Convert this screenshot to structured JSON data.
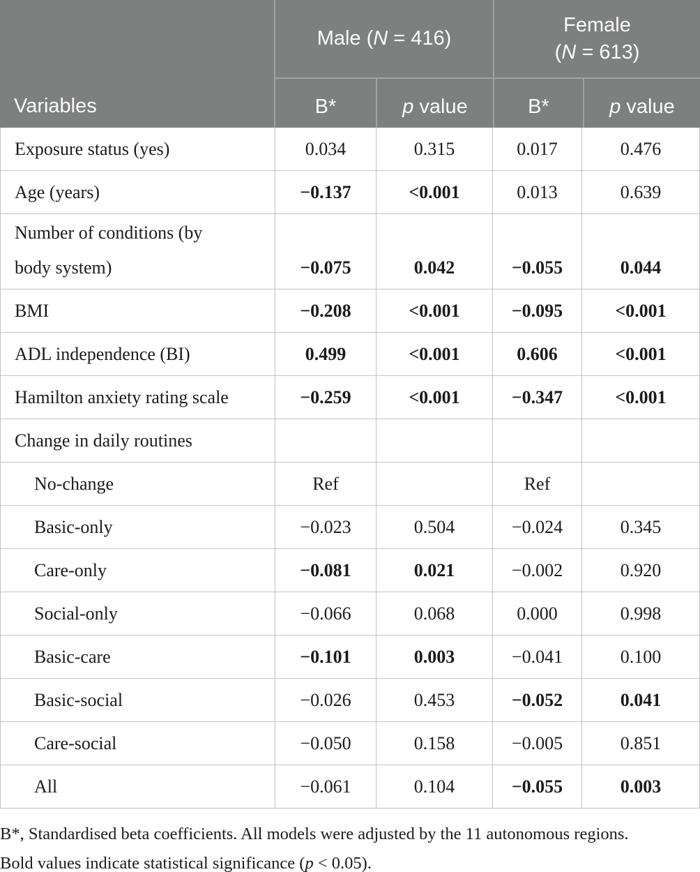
{
  "header": {
    "variables_label": "Variables",
    "male_group": {
      "before": "Male (",
      "n": "N",
      "after": " = 416)"
    },
    "female_group": {
      "line1": "Female",
      "line2_before": "(",
      "n": "N",
      "line2_after": " = 613)"
    },
    "sub_b": "B*",
    "sub_p": "p",
    "sub_p_rest": " value"
  },
  "table": {
    "rows": [
      {
        "label": "Exposure status (yes)",
        "indent": false,
        "cells": [
          {
            "v": "0.034",
            "bold": false
          },
          {
            "v": "0.315",
            "bold": false
          },
          {
            "v": "0.017",
            "bold": false
          },
          {
            "v": "0.476",
            "bold": false
          }
        ]
      },
      {
        "label": "Age (years)",
        "indent": false,
        "cells": [
          {
            "v": "−0.137",
            "bold": true
          },
          {
            "v": "<0.001",
            "bold": true
          },
          {
            "v": "0.013",
            "bold": false
          },
          {
            "v": "0.639",
            "bold": false
          }
        ]
      },
      {
        "label": "Number of conditions (by\nbody system)",
        "indent": false,
        "cells": [
          {
            "v": "−0.075",
            "bold": true
          },
          {
            "v": "0.042",
            "bold": true
          },
          {
            "v": "−0.055",
            "bold": true
          },
          {
            "v": "0.044",
            "bold": true
          }
        ]
      },
      {
        "label": "BMI",
        "indent": false,
        "cells": [
          {
            "v": "−0.208",
            "bold": true
          },
          {
            "v": "<0.001",
            "bold": true
          },
          {
            "v": "−0.095",
            "bold": true
          },
          {
            "v": "<0.001",
            "bold": true
          }
        ]
      },
      {
        "label": "ADL independence (BI)",
        "indent": false,
        "cells": [
          {
            "v": "0.499",
            "bold": true
          },
          {
            "v": "<0.001",
            "bold": true
          },
          {
            "v": "0.606",
            "bold": true
          },
          {
            "v": "<0.001",
            "bold": true
          }
        ]
      },
      {
        "label": "Hamilton anxiety rating scale",
        "indent": false,
        "cells": [
          {
            "v": "−0.259",
            "bold": true
          },
          {
            "v": "<0.001",
            "bold": true
          },
          {
            "v": "−0.347",
            "bold": true
          },
          {
            "v": "<0.001",
            "bold": true
          }
        ]
      },
      {
        "label": "Change in daily routines",
        "indent": false,
        "cells": [
          {
            "v": "",
            "bold": false
          },
          {
            "v": "",
            "bold": false
          },
          {
            "v": "",
            "bold": false
          },
          {
            "v": "",
            "bold": false
          }
        ]
      },
      {
        "label": "No-change",
        "indent": true,
        "cells": [
          {
            "v": "Ref",
            "bold": false
          },
          {
            "v": "",
            "bold": false
          },
          {
            "v": "Ref",
            "bold": false
          },
          {
            "v": "",
            "bold": false
          }
        ]
      },
      {
        "label": "Basic-only",
        "indent": true,
        "cells": [
          {
            "v": "−0.023",
            "bold": false
          },
          {
            "v": "0.504",
            "bold": false
          },
          {
            "v": "−0.024",
            "bold": false
          },
          {
            "v": "0.345",
            "bold": false
          }
        ]
      },
      {
        "label": "Care-only",
        "indent": true,
        "cells": [
          {
            "v": "−0.081",
            "bold": true
          },
          {
            "v": "0.021",
            "bold": true
          },
          {
            "v": "−0.002",
            "bold": false
          },
          {
            "v": "0.920",
            "bold": false
          }
        ]
      },
      {
        "label": "Social-only",
        "indent": true,
        "cells": [
          {
            "v": "−0.066",
            "bold": false
          },
          {
            "v": "0.068",
            "bold": false
          },
          {
            "v": "0.000",
            "bold": false
          },
          {
            "v": "0.998",
            "bold": false
          }
        ]
      },
      {
        "label": "Basic-care",
        "indent": true,
        "cells": [
          {
            "v": "−0.101",
            "bold": true
          },
          {
            "v": "0.003",
            "bold": true
          },
          {
            "v": "−0.041",
            "bold": false
          },
          {
            "v": "0.100",
            "bold": false
          }
        ]
      },
      {
        "label": "Basic-social",
        "indent": true,
        "cells": [
          {
            "v": "−0.026",
            "bold": false
          },
          {
            "v": "0.453",
            "bold": false
          },
          {
            "v": "−0.052",
            "bold": true
          },
          {
            "v": "0.041",
            "bold": true
          }
        ]
      },
      {
        "label": "Care-social",
        "indent": true,
        "cells": [
          {
            "v": "−0.050",
            "bold": false
          },
          {
            "v": "0.158",
            "bold": false
          },
          {
            "v": "−0.005",
            "bold": false
          },
          {
            "v": "0.851",
            "bold": false
          }
        ]
      },
      {
        "label": "All",
        "indent": true,
        "cells": [
          {
            "v": "−0.061",
            "bold": false
          },
          {
            "v": "0.104",
            "bold": false
          },
          {
            "v": "−0.055",
            "bold": true
          },
          {
            "v": "0.003",
            "bold": true
          }
        ]
      }
    ]
  },
  "footnote": {
    "line1": "B*, Standardised beta coefficients. All models were adjusted by the 11 autonomous regions.",
    "line2_before": "Bold values indicate statistical significance (",
    "line2_italic": "p",
    "line2_after": " < 0.05)."
  },
  "colors": {
    "header_bg": "#7e807f",
    "header_divider": "#a0a3a1",
    "header_text": "#fbfbfb",
    "body_text": "#1b1b1b",
    "grid_border": "#c3c3c3"
  }
}
